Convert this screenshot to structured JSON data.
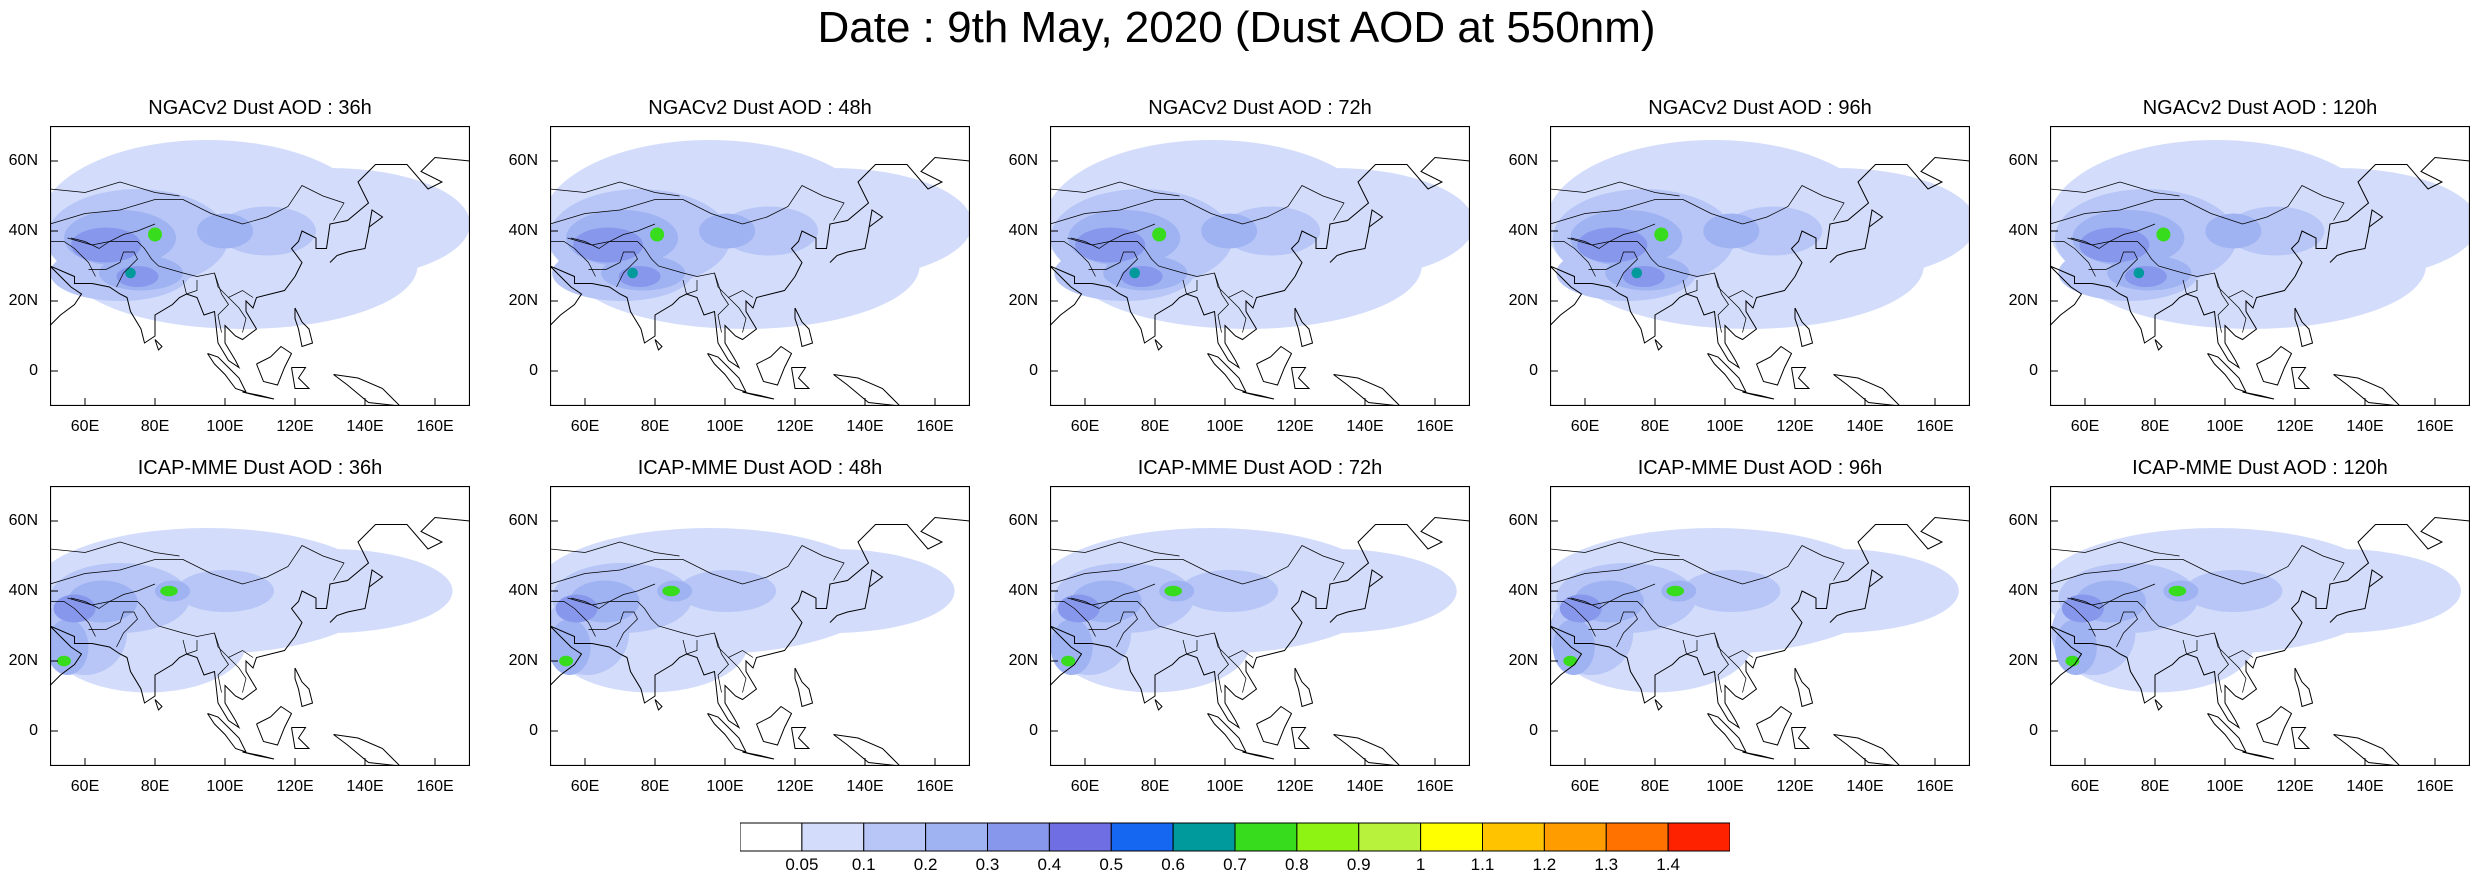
{
  "title": "Date : 9th May, 2020 (Dust AOD at 550nm)",
  "rows": [
    {
      "model": "NGACv2",
      "panels": [
        {
          "title": "NGACv2 Dust AOD : 36h"
        },
        {
          "title": "NGACv2 Dust AOD : 48h"
        },
        {
          "title": "NGACv2 Dust AOD : 72h"
        },
        {
          "title": "NGACv2 Dust AOD : 96h"
        },
        {
          "title": "NGACv2 Dust AOD : 120h"
        }
      ]
    },
    {
      "model": "ICAP-MME",
      "panels": [
        {
          "title": "ICAP-MME Dust AOD : 36h"
        },
        {
          "title": "ICAP-MME Dust AOD : 48h"
        },
        {
          "title": "ICAP-MME Dust AOD : 72h"
        },
        {
          "title": "ICAP-MME Dust AOD : 96h"
        },
        {
          "title": "ICAP-MME Dust AOD : 120h"
        }
      ]
    }
  ],
  "map": {
    "lon_range": [
      50,
      170
    ],
    "lat_range": [
      -10,
      70
    ],
    "lon_ticks": [
      "60E",
      "80E",
      "100E",
      "120E",
      "140E",
      "160E"
    ],
    "lon_tick_values": [
      60,
      80,
      100,
      120,
      140,
      160
    ],
    "lat_ticks": [
      "60N",
      "40N",
      "20N",
      "0"
    ],
    "lat_tick_values": [
      60,
      40,
      20,
      0
    ]
  },
  "colorbar": {
    "labels": [
      "0.05",
      "0.1",
      "0.2",
      "0.3",
      "0.4",
      "0.5",
      "0.6",
      "0.7",
      "0.8",
      "0.9",
      "1",
      "1.1",
      "1.2",
      "1.3",
      "1.4"
    ],
    "colors": [
      "#ffffff",
      "#d3ddfb",
      "#b7c6f6",
      "#9fb2f2",
      "#8797ec",
      "#6f6fe3",
      "#1566f0",
      "#00999c",
      "#37dc1c",
      "#8ef212",
      "#b8f23c",
      "#ffff00",
      "#ffc300",
      "#ff9c00",
      "#ff7200",
      "#ff2200"
    ]
  }
}
